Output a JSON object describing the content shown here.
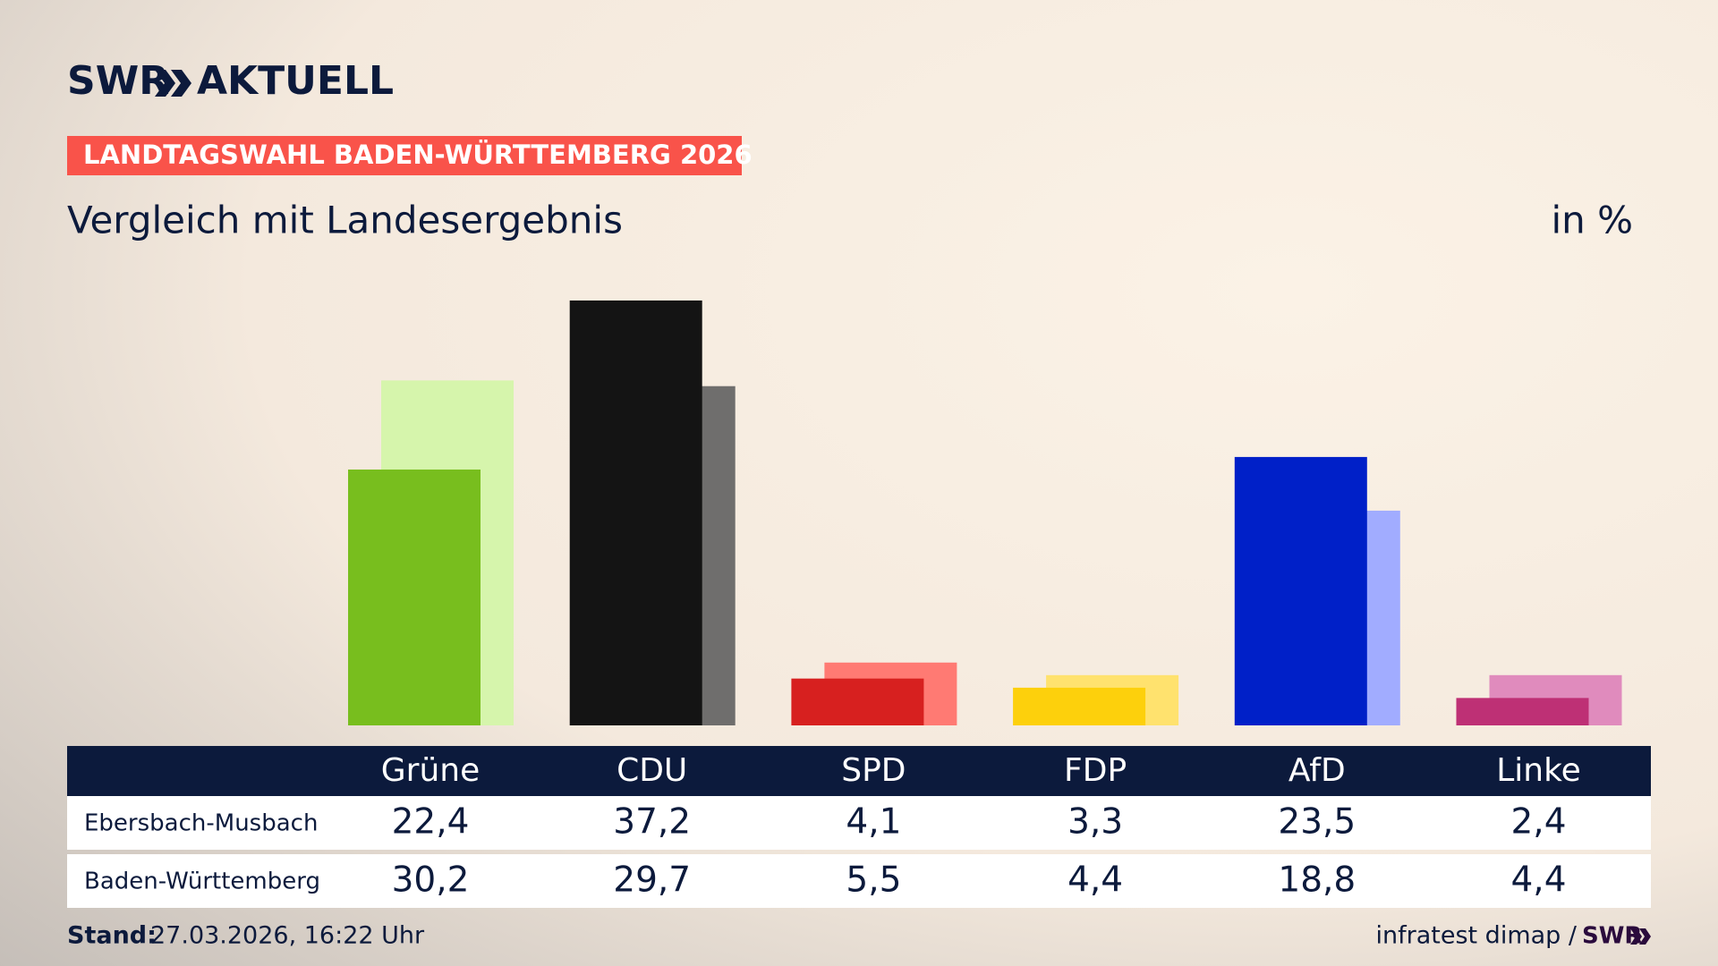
{
  "chart_data": {
    "type": "bar",
    "logo": {
      "name": "SWR",
      "program": "AKTUELL"
    },
    "kicker": "LANDTAGSWAHL BADEN-WÜRTTEMBERG 2026",
    "title": "Vergleich mit Landesergebnis",
    "unit_label": "in %",
    "categories": [
      "Grüne",
      "CDU",
      "SPD",
      "FDP",
      "AfD",
      "Linke"
    ],
    "series": [
      {
        "name": "Ebersbach-Musbach",
        "colors": [
          "#78be1e",
          "#141414",
          "#d7201f",
          "#fdd00c",
          "#0020c8",
          "#be3075"
        ],
        "values": [
          22.4,
          37.2,
          4.1,
          3.3,
          23.5,
          2.4
        ],
        "value_labels": [
          "22,4",
          "37,2",
          "4,1",
          "3,3",
          "23,5",
          "2,4"
        ]
      },
      {
        "name": "Baden-Württemberg",
        "colors": [
          "#d6f5ac",
          "#6f6e6d",
          "#ff7a73",
          "#ffe26e",
          "#a1acff",
          "#e08bbd"
        ],
        "values": [
          30.2,
          29.7,
          5.5,
          4.4,
          18.8,
          4.4
        ],
        "value_labels": [
          "30,2",
          "29,7",
          "5,5",
          "4,4",
          "18,8",
          "4,4"
        ]
      }
    ],
    "footer": {
      "stand_label": "Stand:",
      "stand": "27.03.2026, 16:22 Uhr",
      "source": "infratest dimap /",
      "source_logo": "SWR"
    }
  }
}
